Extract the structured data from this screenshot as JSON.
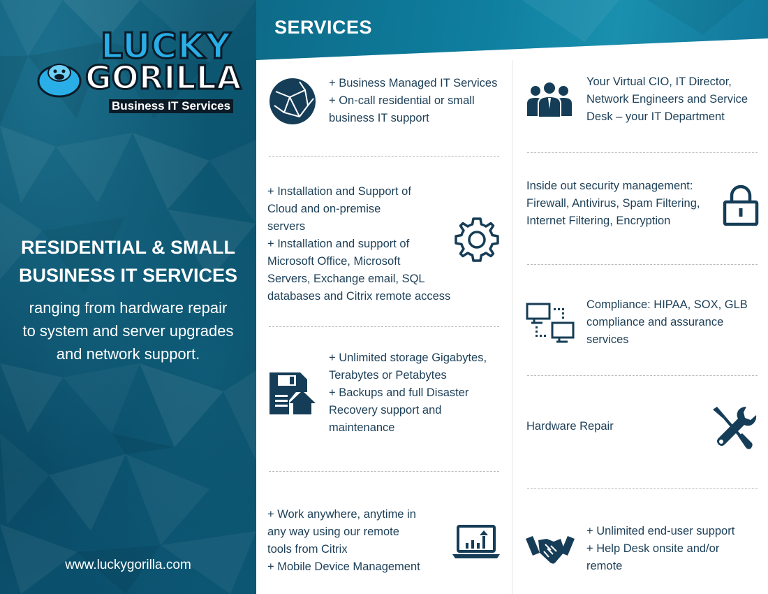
{
  "brand": {
    "logo_line1": "LUCKY",
    "logo_line2": "GORILLA",
    "logo_tagline": "Business IT Services"
  },
  "left": {
    "title_lines": [
      "RESIDENTIAL & SMALL",
      "BUSINESS IT SERVICES"
    ],
    "description_lines": [
      "ranging from hardware repair",
      "to system and server upgrades",
      "and network support."
    ],
    "website": "www.luckygorilla.com"
  },
  "header": {
    "title": "SERVICES"
  },
  "services_left": [
    {
      "icon": "globe-network-icon",
      "lines": [
        "+ Business Managed IT Services",
        "+ On-call residential or small",
        "business IT support"
      ]
    },
    {
      "icon": "gear-icon",
      "lines": [
        "+ Installation and Support of",
        "Cloud and on-premise",
        "servers",
        "+ Installation and support of",
        "Microsoft Office, Microsoft",
        "Servers, Exchange email, SQL",
        "databases and Citrix remote access"
      ]
    },
    {
      "icon": "floppy-upload-icon",
      "lines": [
        "+ Unlimited storage Gigabytes,",
        "Terabytes or Petabytes",
        "+ Backups and full Disaster",
        "Recovery support and",
        "maintenance"
      ]
    },
    {
      "icon": "laptop-chart-icon",
      "lines": [
        "+ Work anywhere, anytime in",
        "any way using our remote",
        "tools from Citrix",
        "+ Mobile Device Management"
      ]
    }
  ],
  "services_right": [
    {
      "icon": "team-people-icon",
      "lines": [
        "Your Virtual CIO, IT Director,",
        "Network Engineers and Service",
        "Desk – your IT Department"
      ]
    },
    {
      "icon": "padlock-icon",
      "lines": [
        "Inside out security management:",
        "Firewall, Antivirus, Spam Filtering,",
        "Internet Filtering, Encryption"
      ]
    },
    {
      "icon": "connected-computers-icon",
      "lines": [
        "Compliance: HIPAA, SOX, GLB",
        "compliance and assurance",
        "services"
      ]
    },
    {
      "icon": "wrench-screwdriver-icon",
      "lines": [
        "Hardware Repair"
      ]
    },
    {
      "icon": "handshake-icon",
      "lines": [
        "+ Unlimited end-user support",
        "+ Help Desk onsite and/or",
        "remote"
      ]
    }
  ],
  "colors": {
    "teal_dark": "#0b4f69",
    "teal_header": "#0f7fa0",
    "text_navy": "#1c3f57",
    "icon_navy": "#163d57",
    "logo_blue": "#29aee8"
  }
}
